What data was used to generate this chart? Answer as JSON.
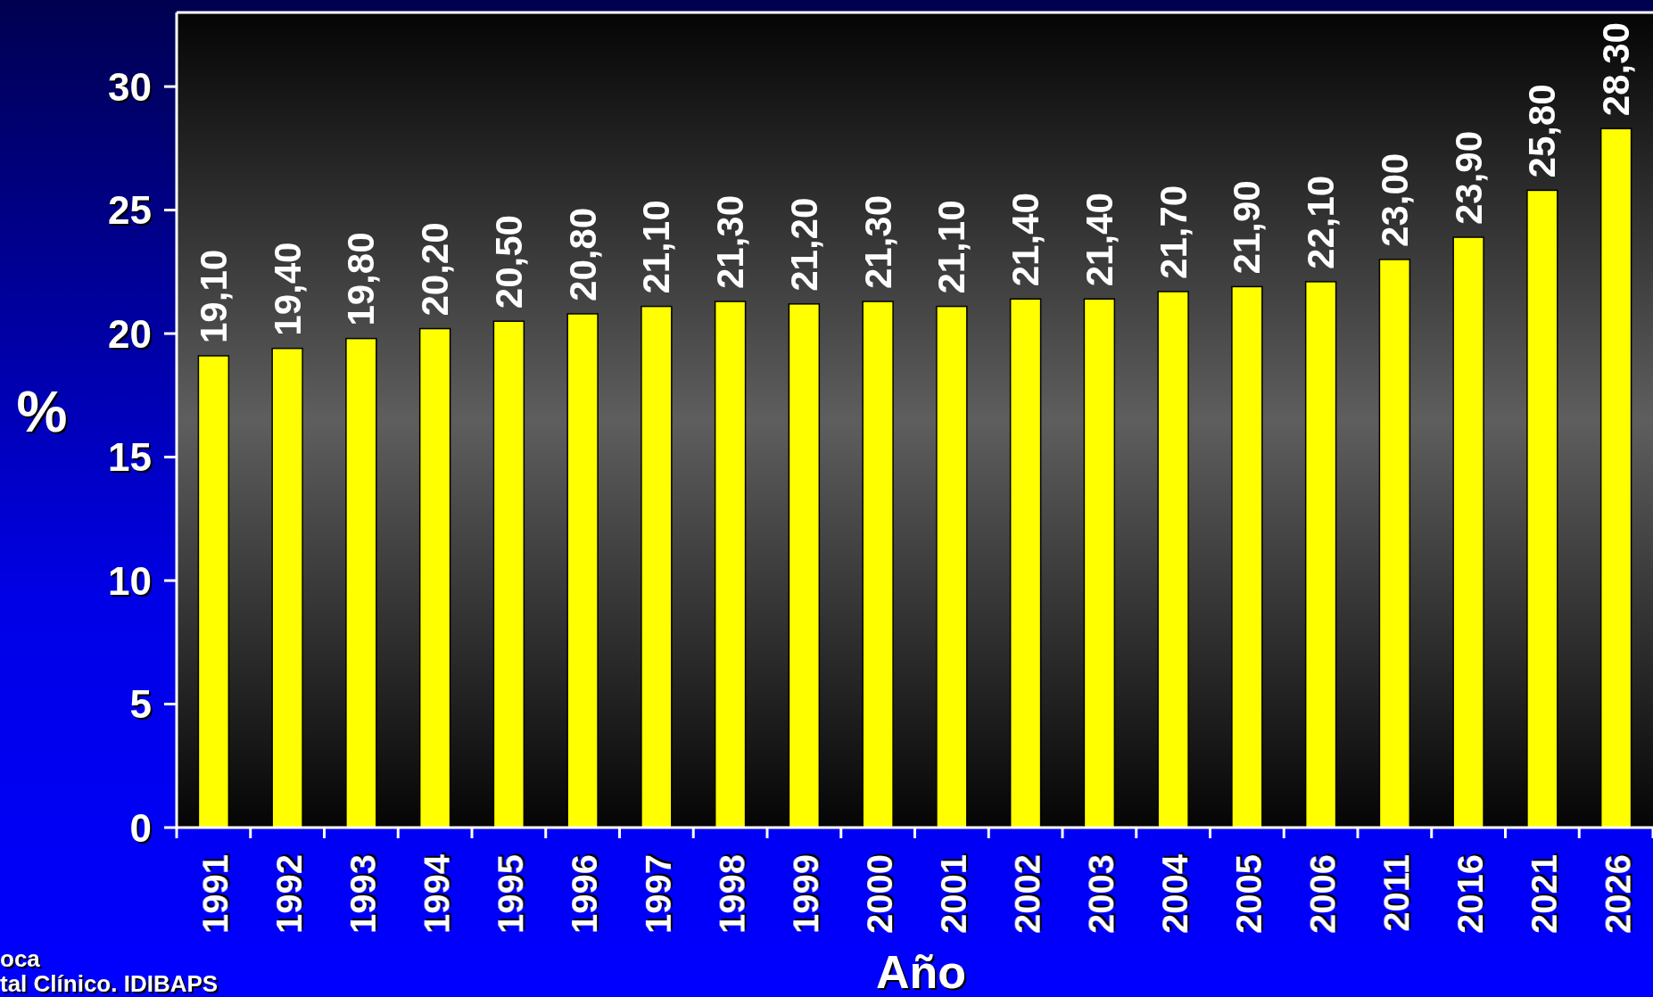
{
  "chart_data": {
    "type": "bar",
    "categories": [
      "1991",
      "1992",
      "1993",
      "1994",
      "1995",
      "1996",
      "1997",
      "1998",
      "1999",
      "2000",
      "2001",
      "2002",
      "2003",
      "2004",
      "2005",
      "2006",
      "2011",
      "2016",
      "2021",
      "2026"
    ],
    "values": [
      19.1,
      19.4,
      19.8,
      20.2,
      20.5,
      20.8,
      21.1,
      21.3,
      21.2,
      21.3,
      21.1,
      21.4,
      21.4,
      21.7,
      21.9,
      22.1,
      23.0,
      23.9,
      25.8,
      28.3
    ],
    "value_labels": [
      "19,10",
      "19,40",
      "19,80",
      "20,20",
      "20,50",
      "20,80",
      "21,10",
      "21,30",
      "21,20",
      "21,30",
      "21,10",
      "21,40",
      "21,40",
      "21,70",
      "21,90",
      "22,10",
      "23,00",
      "23,90",
      "25,80",
      "28,30"
    ],
    "color": "#ffff00",
    "ylim": [
      0,
      33
    ],
    "yticks": [
      0,
      5,
      10,
      15,
      20,
      25,
      30
    ],
    "xlabel": "Año",
    "ylabel": "%",
    "annotations": [
      "oca",
      "tal Clínico. IDIBAPS"
    ]
  }
}
